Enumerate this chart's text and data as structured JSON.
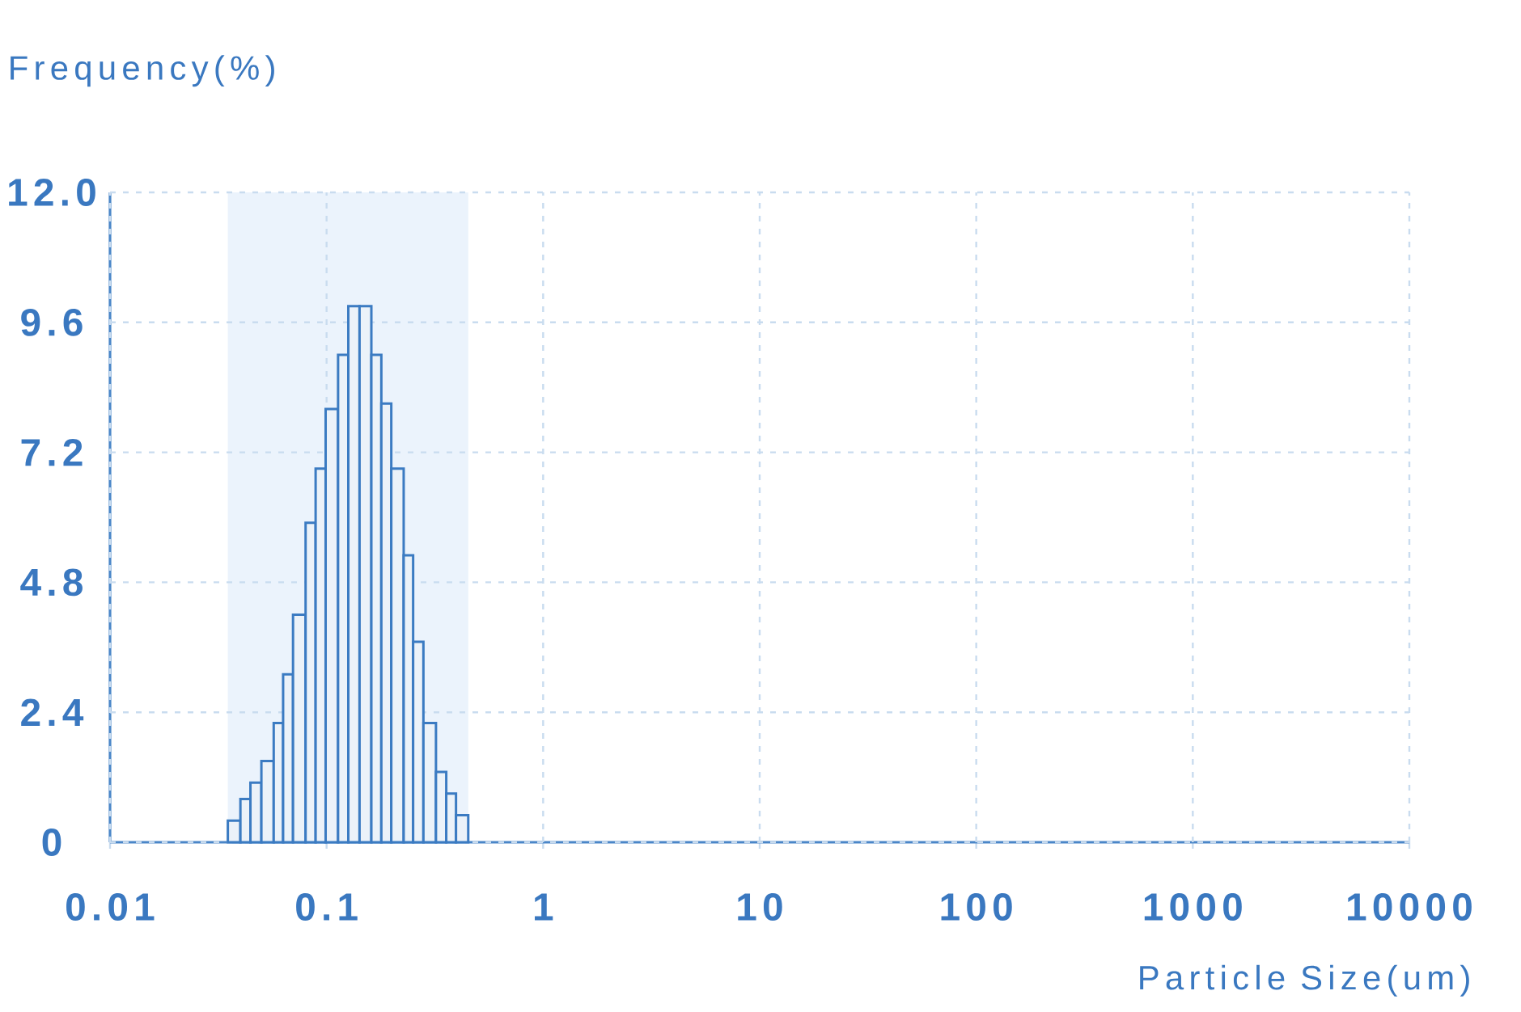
{
  "chart_data": {
    "type": "histogram",
    "xlabel": "Particle Size(um)",
    "ylabel": "Frequency(%)",
    "bins": [
      0.035,
      0.04,
      0.0445,
      0.05,
      0.057,
      0.063,
      0.07,
      0.08,
      0.089,
      0.099,
      0.113,
      0.126,
      0.142,
      0.161,
      0.179,
      0.199,
      0.227,
      0.251,
      0.28,
      0.32,
      0.357,
      0.396,
      0.451
    ],
    "values": [
      0.4,
      0.8,
      1.1,
      1.5,
      2.2,
      3.1,
      4.2,
      5.9,
      6.9,
      8.0,
      9.0,
      9.9,
      9.9,
      9.0,
      8.1,
      6.9,
      5.3,
      3.7,
      2.2,
      1.3,
      0.9,
      0.5
    ],
    "color": "#3b7bc2",
    "log": "x",
    "xlim": [
      0.01,
      10000
    ],
    "xticks": [
      0.01,
      0.1,
      1,
      10,
      100,
      1000,
      10000
    ],
    "ylim": [
      0,
      12
    ],
    "yticks": [
      0,
      2.4,
      4.8,
      7.2,
      9.6,
      {
        "value": 12,
        "label": "12.0"
      }
    ],
    "grid": true,
    "bands": [
      {
        "axis": "x",
        "from": 0.035,
        "to": 0.451,
        "color": "#ebf3fc"
      }
    ]
  }
}
